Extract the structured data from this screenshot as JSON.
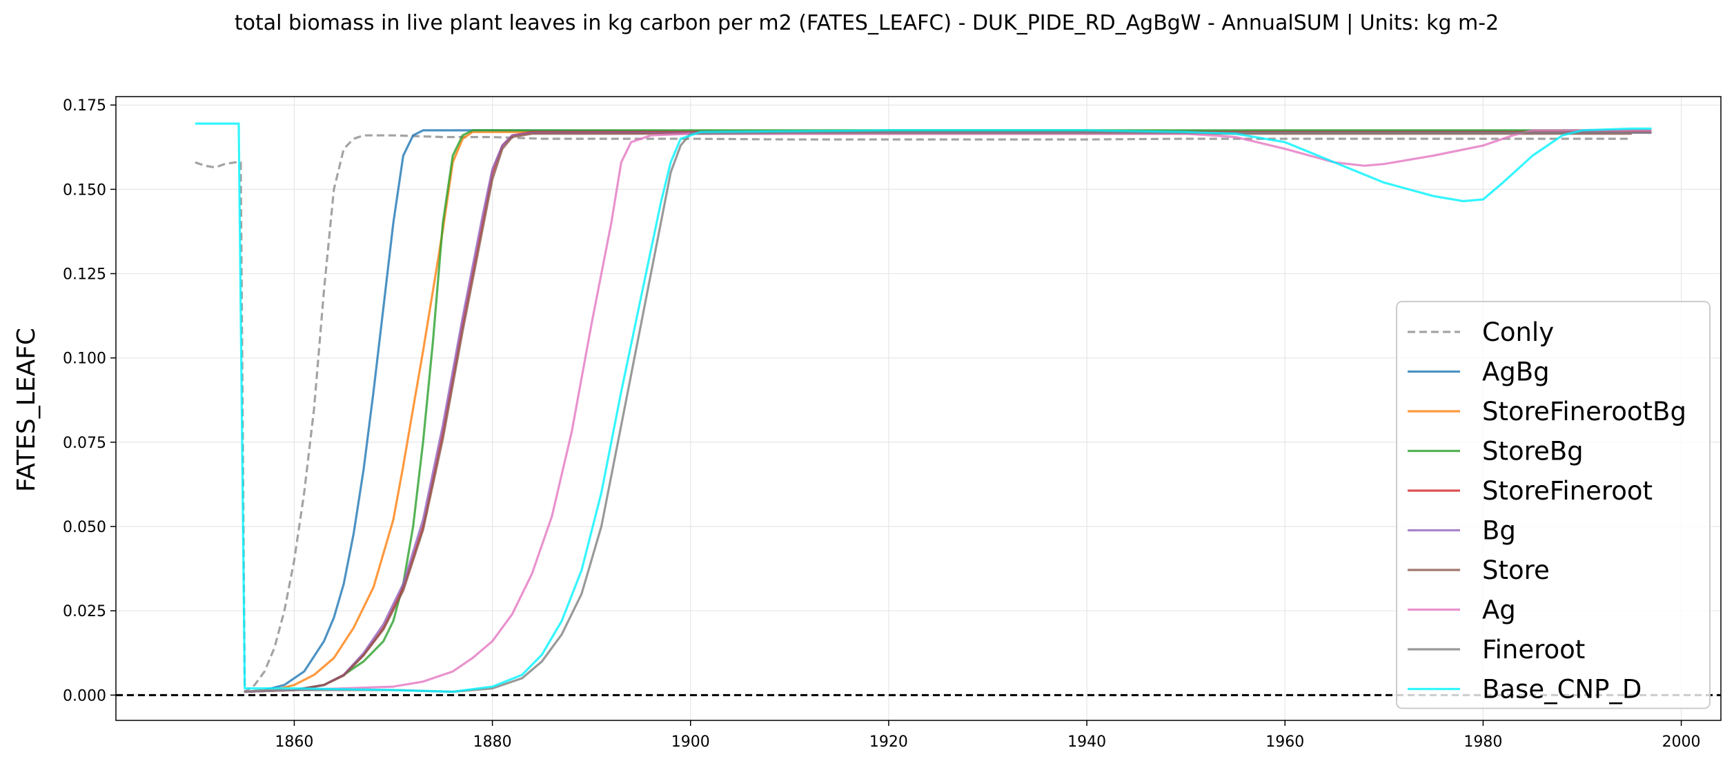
{
  "chart_data": {
    "type": "line",
    "title": "total biomass in live plant leaves in kg carbon per m2 (FATES_LEAFC) - DUK_PIDE_RD_AgBgW - AnnualSUM | Units: kg m-2",
    "xlabel": "",
    "ylabel": "FATES_LEAFC",
    "xlim": [
      1842,
      2004
    ],
    "ylim": [
      -0.0075,
      0.1775
    ],
    "xticks": [
      1860,
      1880,
      1900,
      1920,
      1940,
      1960,
      1980,
      2000
    ],
    "yticks": [
      "0.000",
      "0.025",
      "0.050",
      "0.075",
      "0.100",
      "0.125",
      "0.150",
      "0.175"
    ],
    "grid": true,
    "legend_position": "lower-right",
    "reference_line": {
      "y": 0.0,
      "style": "dashed",
      "color": "#000000"
    },
    "series": [
      {
        "name": "Conly",
        "color": "#8c8c8c",
        "dashed": true,
        "points": [
          [
            1850,
            0.158
          ],
          [
            1851,
            0.157
          ],
          [
            1852,
            0.1565
          ],
          [
            1853,
            0.1575
          ],
          [
            1854,
            0.158
          ],
          [
            1854.6,
            0.158
          ],
          [
            1855,
            0.001
          ],
          [
            1856,
            0.003
          ],
          [
            1857,
            0.007
          ],
          [
            1858,
            0.014
          ],
          [
            1859,
            0.025
          ],
          [
            1860,
            0.04
          ],
          [
            1861,
            0.06
          ],
          [
            1862,
            0.085
          ],
          [
            1863,
            0.12
          ],
          [
            1864,
            0.15
          ],
          [
            1865,
            0.162
          ],
          [
            1866,
            0.165
          ],
          [
            1867,
            0.166
          ],
          [
            1870,
            0.166
          ],
          [
            1875,
            0.1655
          ],
          [
            1880,
            0.1655
          ],
          [
            1885,
            0.165
          ],
          [
            1890,
            0.165
          ],
          [
            1900,
            0.165
          ],
          [
            1910,
            0.1648
          ],
          [
            1920,
            0.1648
          ],
          [
            1930,
            0.1648
          ],
          [
            1940,
            0.1648
          ],
          [
            1950,
            0.165
          ],
          [
            1960,
            0.165
          ],
          [
            1970,
            0.165
          ],
          [
            1980,
            0.165
          ],
          [
            1990,
            0.165
          ],
          [
            1995,
            0.165
          ]
        ]
      },
      {
        "name": "AgBg",
        "color": "#1f77b4",
        "dashed": false,
        "points": [
          [
            1855,
            0.001
          ],
          [
            1857,
            0.0015
          ],
          [
            1859,
            0.003
          ],
          [
            1861,
            0.007
          ],
          [
            1863,
            0.016
          ],
          [
            1864,
            0.023
          ],
          [
            1865,
            0.033
          ],
          [
            1866,
            0.048
          ],
          [
            1867,
            0.067
          ],
          [
            1868,
            0.09
          ],
          [
            1869,
            0.115
          ],
          [
            1870,
            0.14
          ],
          [
            1871,
            0.16
          ],
          [
            1872,
            0.166
          ],
          [
            1873,
            0.1675
          ],
          [
            1880,
            0.1675
          ],
          [
            1900,
            0.1672
          ],
          [
            1950,
            0.1672
          ],
          [
            1997,
            0.1672
          ]
        ]
      },
      {
        "name": "StoreFinerootBg",
        "color": "#ff7f0e",
        "dashed": false,
        "points": [
          [
            1855,
            0.001
          ],
          [
            1858,
            0.0015
          ],
          [
            1860,
            0.003
          ],
          [
            1862,
            0.006
          ],
          [
            1864,
            0.011
          ],
          [
            1866,
            0.02
          ],
          [
            1868,
            0.032
          ],
          [
            1870,
            0.052
          ],
          [
            1871,
            0.068
          ],
          [
            1872,
            0.085
          ],
          [
            1873,
            0.102
          ],
          [
            1874,
            0.12
          ],
          [
            1875,
            0.138
          ],
          [
            1876,
            0.158
          ],
          [
            1877,
            0.165
          ],
          [
            1878,
            0.167
          ],
          [
            1890,
            0.167
          ],
          [
            1950,
            0.167
          ],
          [
            1997,
            0.167
          ]
        ]
      },
      {
        "name": "StoreBg",
        "color": "#2ca02c",
        "dashed": false,
        "points": [
          [
            1855,
            0.001
          ],
          [
            1860,
            0.0015
          ],
          [
            1863,
            0.003
          ],
          [
            1865,
            0.006
          ],
          [
            1867,
            0.01
          ],
          [
            1869,
            0.016
          ],
          [
            1870,
            0.022
          ],
          [
            1871,
            0.033
          ],
          [
            1872,
            0.05
          ],
          [
            1873,
            0.075
          ],
          [
            1874,
            0.105
          ],
          [
            1875,
            0.14
          ],
          [
            1876,
            0.16
          ],
          [
            1877,
            0.166
          ],
          [
            1878,
            0.1675
          ],
          [
            1890,
            0.1675
          ],
          [
            1950,
            0.1675
          ],
          [
            1997,
            0.1675
          ]
        ]
      },
      {
        "name": "StoreFineroot",
        "color": "#d62728",
        "dashed": false,
        "points": [
          [
            1855,
            0.001
          ],
          [
            1860,
            0.0015
          ],
          [
            1863,
            0.003
          ],
          [
            1865,
            0.006
          ],
          [
            1867,
            0.012
          ],
          [
            1869,
            0.02
          ],
          [
            1871,
            0.032
          ],
          [
            1873,
            0.05
          ],
          [
            1875,
            0.078
          ],
          [
            1877,
            0.11
          ],
          [
            1879,
            0.14
          ],
          [
            1880,
            0.155
          ],
          [
            1881,
            0.163
          ],
          [
            1882,
            0.166
          ],
          [
            1884,
            0.167
          ],
          [
            1950,
            0.167
          ],
          [
            1997,
            0.167
          ]
        ]
      },
      {
        "name": "Bg",
        "color": "#9467bd",
        "dashed": false,
        "points": [
          [
            1855,
            0.001
          ],
          [
            1860,
            0.0015
          ],
          [
            1863,
            0.003
          ],
          [
            1865,
            0.006
          ],
          [
            1867,
            0.0125
          ],
          [
            1869,
            0.021
          ],
          [
            1871,
            0.033
          ],
          [
            1873,
            0.052
          ],
          [
            1875,
            0.08
          ],
          [
            1877,
            0.112
          ],
          [
            1879,
            0.142
          ],
          [
            1880,
            0.156
          ],
          [
            1881,
            0.163
          ],
          [
            1882,
            0.166
          ],
          [
            1884,
            0.1668
          ],
          [
            1950,
            0.1668
          ],
          [
            1997,
            0.1668
          ]
        ]
      },
      {
        "name": "Store",
        "color": "#8c564b",
        "dashed": false,
        "points": [
          [
            1855,
            0.001
          ],
          [
            1860,
            0.0015
          ],
          [
            1863,
            0.003
          ],
          [
            1865,
            0.0058
          ],
          [
            1867,
            0.0118
          ],
          [
            1869,
            0.0195
          ],
          [
            1871,
            0.031
          ],
          [
            1873,
            0.049
          ],
          [
            1875,
            0.076
          ],
          [
            1877,
            0.108
          ],
          [
            1879,
            0.138
          ],
          [
            1880,
            0.153
          ],
          [
            1881,
            0.162
          ],
          [
            1882,
            0.1655
          ],
          [
            1884,
            0.1665
          ],
          [
            1950,
            0.1665
          ],
          [
            1995,
            0.1665
          ]
        ]
      },
      {
        "name": "Ag",
        "color": "#e377c2",
        "dashed": false,
        "points": [
          [
            1855,
            0.001
          ],
          [
            1860,
            0.0015
          ],
          [
            1865,
            0.002
          ],
          [
            1870,
            0.0025
          ],
          [
            1873,
            0.004
          ],
          [
            1876,
            0.007
          ],
          [
            1878,
            0.011
          ],
          [
            1880,
            0.016
          ],
          [
            1882,
            0.024
          ],
          [
            1884,
            0.036
          ],
          [
            1886,
            0.053
          ],
          [
            1888,
            0.078
          ],
          [
            1890,
            0.11
          ],
          [
            1892,
            0.14
          ],
          [
            1893,
            0.158
          ],
          [
            1894,
            0.164
          ],
          [
            1896,
            0.166
          ],
          [
            1900,
            0.1665
          ],
          [
            1950,
            0.1665
          ],
          [
            1955,
            0.1655
          ],
          [
            1960,
            0.162
          ],
          [
            1965,
            0.158
          ],
          [
            1968,
            0.157
          ],
          [
            1970,
            0.1575
          ],
          [
            1975,
            0.16
          ],
          [
            1980,
            0.163
          ],
          [
            1983,
            0.166
          ],
          [
            1985,
            0.1675
          ],
          [
            1997,
            0.1675
          ]
        ]
      },
      {
        "name": "Fineroot",
        "color": "#7f7f7f",
        "dashed": false,
        "points": [
          [
            1855,
            0.001
          ],
          [
            1860,
            0.0015
          ],
          [
            1870,
            0.0015
          ],
          [
            1876,
            0.001
          ],
          [
            1880,
            0.002
          ],
          [
            1883,
            0.005
          ],
          [
            1885,
            0.01
          ],
          [
            1887,
            0.018
          ],
          [
            1889,
            0.03
          ],
          [
            1891,
            0.05
          ],
          [
            1893,
            0.08
          ],
          [
            1895,
            0.11
          ],
          [
            1897,
            0.14
          ],
          [
            1898,
            0.155
          ],
          [
            1899,
            0.163
          ],
          [
            1900,
            0.1665
          ],
          [
            1910,
            0.1668
          ],
          [
            1950,
            0.1668
          ],
          [
            1997,
            0.1668
          ]
        ]
      },
      {
        "name": "Base_CNP_D",
        "color": "#00f2ff",
        "dashed": false,
        "points": [
          [
            1850,
            0.1695
          ],
          [
            1854.4,
            0.1695
          ],
          [
            1855,
            0.002
          ],
          [
            1860,
            0.002
          ],
          [
            1870,
            0.0015
          ],
          [
            1876,
            0.001
          ],
          [
            1880,
            0.0025
          ],
          [
            1883,
            0.006
          ],
          [
            1885,
            0.012
          ],
          [
            1887,
            0.022
          ],
          [
            1889,
            0.037
          ],
          [
            1891,
            0.06
          ],
          [
            1893,
            0.09
          ],
          [
            1895,
            0.118
          ],
          [
            1897,
            0.146
          ],
          [
            1898,
            0.158
          ],
          [
            1899,
            0.165
          ],
          [
            1901,
            0.167
          ],
          [
            1920,
            0.1675
          ],
          [
            1940,
            0.1675
          ],
          [
            1950,
            0.167
          ],
          [
            1955,
            0.1665
          ],
          [
            1960,
            0.164
          ],
          [
            1965,
            0.158
          ],
          [
            1970,
            0.152
          ],
          [
            1975,
            0.148
          ],
          [
            1978,
            0.1465
          ],
          [
            1980,
            0.147
          ],
          [
            1982,
            0.152
          ],
          [
            1985,
            0.16
          ],
          [
            1988,
            0.166
          ],
          [
            1990,
            0.1675
          ],
          [
            1995,
            0.168
          ],
          [
            1997,
            0.168
          ]
        ]
      }
    ]
  }
}
